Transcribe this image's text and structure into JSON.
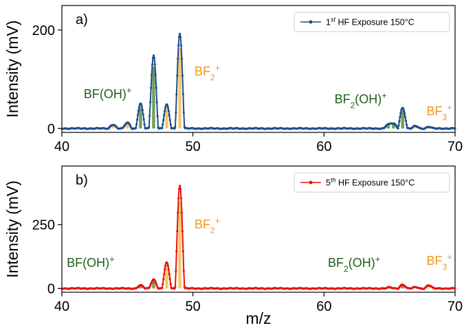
{
  "xlabel": "m/z",
  "colors": {
    "green_species": "#1e5e1a",
    "orange_species": "#f0951e",
    "green_bar": "#5a8e3a",
    "orange_bar": "#f3c04e"
  },
  "chart_data": [
    {
      "type": "line",
      "panel_label": "a)",
      "ylabel": "Intensity (mV)",
      "xlim": [
        40,
        70
      ],
      "ylim": [
        -8,
        250
      ],
      "xticks": [
        40,
        50,
        60,
        70
      ],
      "yticks": [
        0,
        200
      ],
      "grid": false,
      "legend_position": "top-right",
      "series": [
        {
          "name": "1st HF Exposure 150°C",
          "legend": {
            "pre": "1",
            "sup": "st",
            "post": " HF Exposure 150°C"
          },
          "color": "#1f4e8c",
          "peaks": [
            {
              "mz": 43.9,
              "height": 8
            },
            {
              "mz": 45.0,
              "height": 12
            },
            {
              "mz": 46.0,
              "height": 50
            },
            {
              "mz": 47.0,
              "height": 148
            },
            {
              "mz": 48.0,
              "height": 48
            },
            {
              "mz": 49.0,
              "height": 192
            },
            {
              "mz": 64.9,
              "height": 8
            },
            {
              "mz": 65.3,
              "height": 10
            },
            {
              "mz": 66.0,
              "height": 42
            },
            {
              "mz": 67.0,
              "height": 5
            },
            {
              "mz": 68.0,
              "height": 3
            }
          ]
        }
      ],
      "annotations": [
        {
          "parts": [
            {
              "t": "BF(OH)"
            },
            {
              "t": "+",
              "sup": true
            }
          ],
          "x": 43.5,
          "y": 62,
          "species": "green"
        },
        {
          "parts": [
            {
              "t": "BF"
            },
            {
              "t": "2",
              "sub": true
            },
            {
              "t": "+",
              "sup": true
            }
          ],
          "x": 51.1,
          "y": 108,
          "species": "orange"
        },
        {
          "parts": [
            {
              "t": "BF"
            },
            {
              "t": "2",
              "sub": true
            },
            {
              "t": "(OH)"
            },
            {
              "t": "+",
              "sup": true
            }
          ],
          "x": 62.8,
          "y": 51,
          "species": "green"
        },
        {
          "parts": [
            {
              "t": "BF"
            },
            {
              "t": "3",
              "sub": true
            },
            {
              "t": "+",
              "sup": true
            }
          ],
          "x": 68.8,
          "y": 27,
          "species": "orange"
        }
      ]
    },
    {
      "type": "line",
      "panel_label": "b)",
      "ylabel": "Intensity (mV)",
      "xlim": [
        40,
        70
      ],
      "ylim": [
        -15,
        480
      ],
      "xticks": [
        40,
        50,
        60,
        70
      ],
      "yticks": [
        0,
        250
      ],
      "grid": false,
      "legend_position": "top-right",
      "series": [
        {
          "name": "5th HF Exposure 150°C",
          "legend": {
            "pre": "5",
            "sup": "th",
            "post": " HF Exposure 150°C"
          },
          "color": "#e8120c",
          "peaks": [
            {
              "mz": 46.0,
              "height": 12
            },
            {
              "mz": 47.0,
              "height": 35
            },
            {
              "mz": 48.0,
              "height": 100
            },
            {
              "mz": 49.0,
              "height": 402
            },
            {
              "mz": 65.0,
              "height": 4
            },
            {
              "mz": 66.0,
              "height": 15
            },
            {
              "mz": 67.0,
              "height": 5
            },
            {
              "mz": 68.0,
              "height": 12
            }
          ]
        }
      ],
      "annotations": [
        {
          "parts": [
            {
              "t": "BF(OH)"
            },
            {
              "t": "+",
              "sup": true
            }
          ],
          "x": 42.2,
          "y": 85,
          "species": "green"
        },
        {
          "parts": [
            {
              "t": "BF"
            },
            {
              "t": "2",
              "sub": true
            },
            {
              "t": "+",
              "sup": true
            }
          ],
          "x": 51.1,
          "y": 235,
          "species": "orange"
        },
        {
          "parts": [
            {
              "t": "BF"
            },
            {
              "t": "2",
              "sub": true
            },
            {
              "t": "(OH)"
            },
            {
              "t": "+",
              "sup": true
            }
          ],
          "x": 62.3,
          "y": 85,
          "species": "green"
        },
        {
          "parts": [
            {
              "t": "BF"
            },
            {
              "t": "3",
              "sub": true
            },
            {
              "t": "+",
              "sup": true
            }
          ],
          "x": 68.8,
          "y": 92,
          "species": "orange"
        }
      ]
    }
  ]
}
